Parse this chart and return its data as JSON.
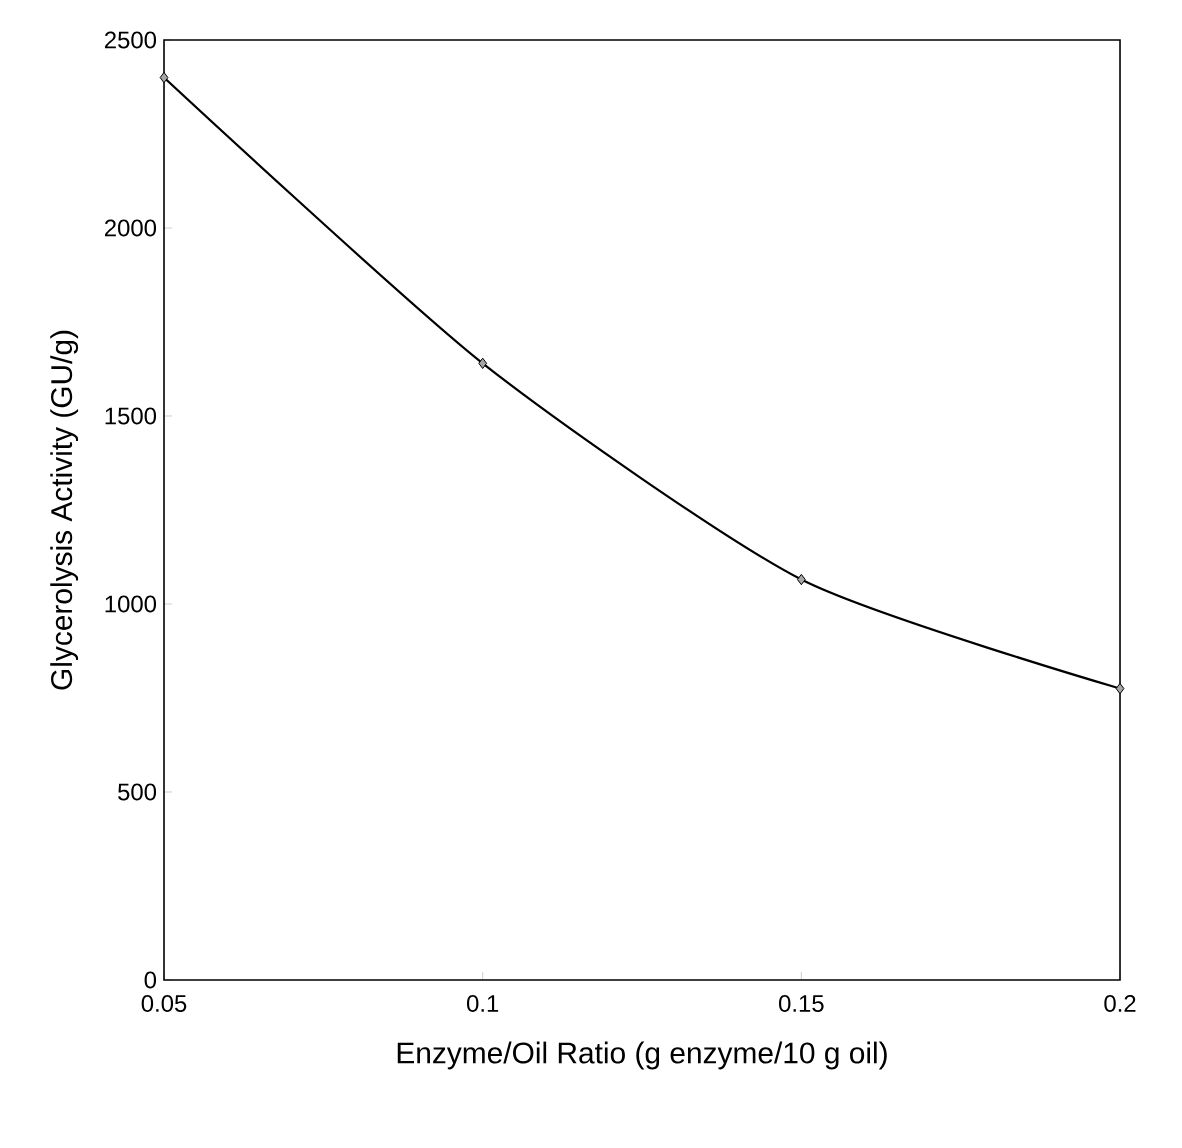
{
  "chart_data": {
    "type": "line",
    "xlabel": "Enzyme/Oil Ratio (g enzyme/10 g oil)",
    "ylabel": "Glycerolysis Activity (GU/g)",
    "x": [
      0.05,
      0.1,
      0.15,
      0.2
    ],
    "series": [
      {
        "color": "#000000",
        "values": [
          2400,
          1640,
          1065,
          775
        ]
      }
    ],
    "xlim": [
      0.05,
      0.2
    ],
    "ylim": [
      0,
      2500
    ],
    "xticks": [
      0.05,
      0.1,
      0.15,
      0.2
    ],
    "yticks": [
      0,
      500,
      1000,
      1500,
      2000,
      2500
    ],
    "marker": "diamond",
    "line_style": "solid",
    "grid": false
  }
}
